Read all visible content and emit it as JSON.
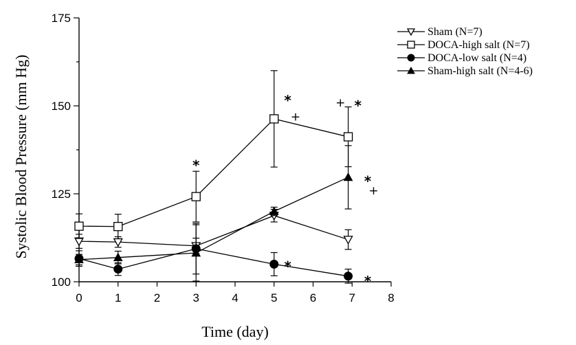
{
  "chart_data": {
    "type": "line",
    "xlabel": "Time (day)",
    "ylabel": "Systolic Blood Pressure (mm Hg)",
    "xlim": [
      0,
      8
    ],
    "ylim": [
      100,
      175
    ],
    "xticks": [
      0,
      1,
      2,
      3,
      4,
      5,
      6,
      7,
      8
    ],
    "yticks": [
      100,
      125,
      150,
      175
    ],
    "grid": false,
    "legend_position": "top-right",
    "series": [
      {
        "name": "Sham (N=7)",
        "marker": "triangle-down-open",
        "x": [
          0,
          1,
          3,
          5,
          6.9
        ],
        "y": [
          111.5,
          111.3,
          110.2,
          118.8,
          112.0
        ],
        "err": [
          2.0,
          1.5,
          2.2,
          1.8,
          2.8
        ]
      },
      {
        "name": "DOCA-high salt (N=7)",
        "marker": "square-open",
        "x": [
          0,
          1,
          3,
          5,
          6.9
        ],
        "y": [
          115.8,
          115.7,
          124.2,
          146.3,
          141.2
        ],
        "err": [
          3.5,
          3.5,
          7.2,
          13.7,
          8.5
        ]
      },
      {
        "name": "DOCA-low salt (N=4)",
        "marker": "circle-filled",
        "x": [
          0,
          1,
          3,
          5,
          6.9
        ],
        "y": [
          106.6,
          103.6,
          109.4,
          105.0,
          101.6
        ],
        "err": [
          2.2,
          1.8,
          7.2,
          3.3,
          2.0
        ]
      },
      {
        "name": "Sham-high salt (N=4-6)",
        "marker": "triangle-up-filled",
        "x": [
          0,
          1,
          3,
          5,
          6.9
        ],
        "y": [
          106.3,
          106.9,
          108.2,
          120.0,
          129.7
        ],
        "err": [
          1.5,
          1.8,
          8.0,
          1.2,
          9.0
        ]
      }
    ],
    "annotations": [
      {
        "text": "*",
        "x": 3.0,
        "y": 133.5,
        "kind": "star"
      },
      {
        "text": "*",
        "x": 5.35,
        "y": 152.0,
        "kind": "star"
      },
      {
        "text": "+",
        "x": 5.55,
        "y": 147.0,
        "kind": "plus"
      },
      {
        "text": "+",
        "x": 6.7,
        "y": 151.0,
        "kind": "plus"
      },
      {
        "text": "*",
        "x": 7.15,
        "y": 150.5,
        "kind": "star"
      },
      {
        "text": "*",
        "x": 7.4,
        "y": 129.0,
        "kind": "star"
      },
      {
        "text": "+",
        "x": 7.55,
        "y": 126.0,
        "kind": "plus"
      },
      {
        "text": "*",
        "x": 5.35,
        "y": 104.8,
        "kind": "star"
      },
      {
        "text": "*",
        "x": 7.4,
        "y": 100.6,
        "kind": "star"
      }
    ]
  }
}
